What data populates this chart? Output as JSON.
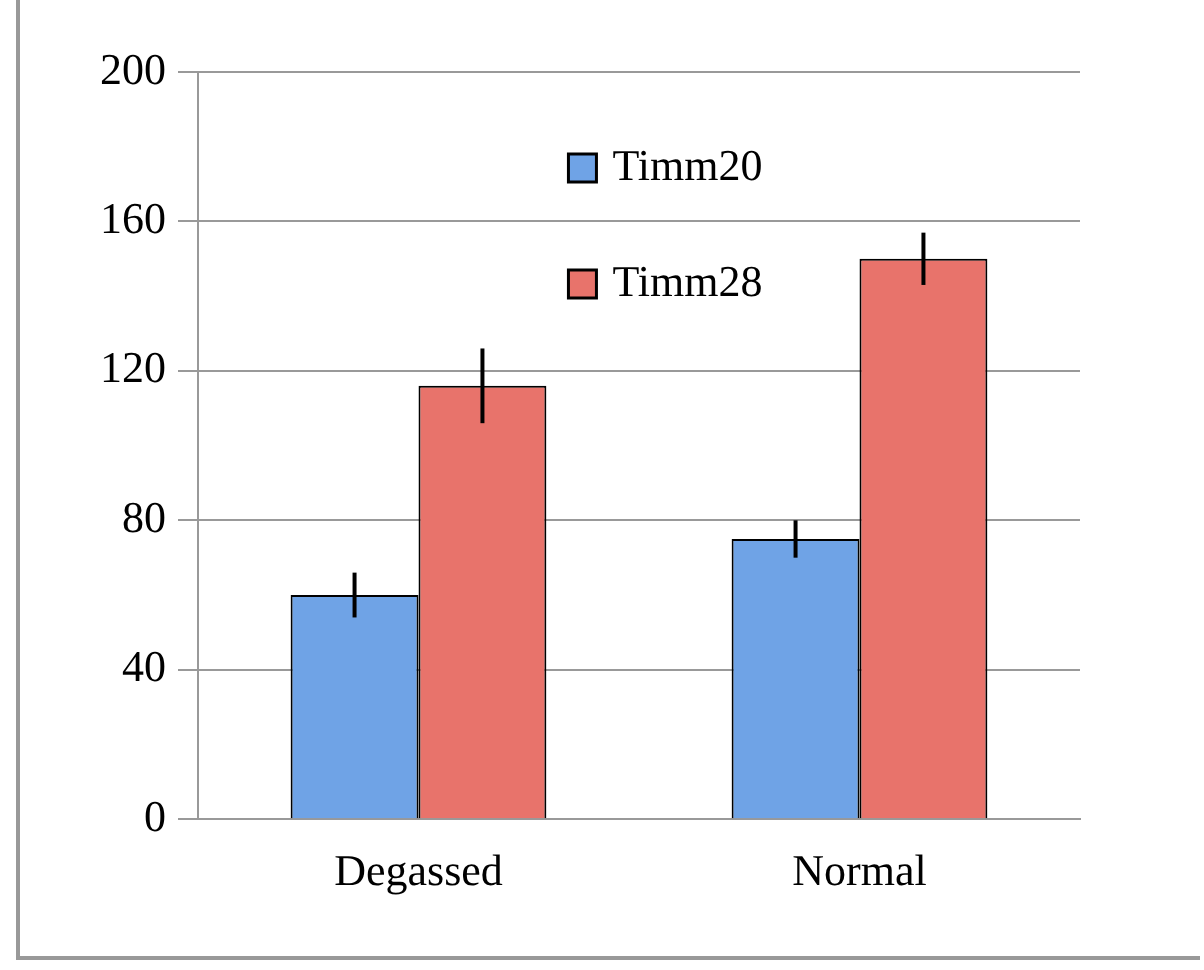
{
  "chart_data": {
    "type": "bar",
    "categories": [
      "Degassed",
      "Normal"
    ],
    "series": [
      {
        "name": "Timm20",
        "color": "#6fa3e6",
        "values": [
          60,
          75
        ],
        "errors": [
          6,
          5
        ]
      },
      {
        "name": "Timm28",
        "color": "#e8736b",
        "values": [
          116,
          150
        ],
        "errors": [
          10,
          7
        ]
      }
    ],
    "ylim": [
      0,
      200
    ],
    "yticks": [
      0,
      40,
      80,
      120,
      160,
      200
    ],
    "grid": "y",
    "legend": "top"
  }
}
